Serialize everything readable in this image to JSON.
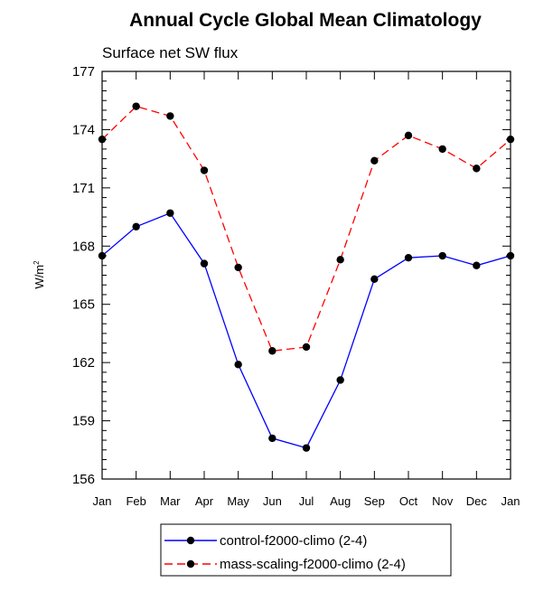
{
  "chart_data": {
    "type": "line",
    "title": "Annual Cycle Global Mean Climatology",
    "subtitle": "Surface net SW flux",
    "ylabel_base": "W/m",
    "ylabel_exp": "2",
    "xlabel": "",
    "categories": [
      "Jan",
      "Feb",
      "Mar",
      "Apr",
      "May",
      "Jun",
      "Jul",
      "Aug",
      "Sep",
      "Oct",
      "Nov",
      "Dec",
      "Jan"
    ],
    "ylim": [
      156,
      177
    ],
    "yticks": [
      156,
      159,
      162,
      165,
      168,
      171,
      174,
      177
    ],
    "grid": false,
    "legend_position": "bottom",
    "series": [
      {
        "name": "control-f2000-climo (2-4)",
        "color": "#0000ff",
        "dash": "solid",
        "marker": "filled-circle",
        "values": [
          167.5,
          169.0,
          169.7,
          167.1,
          161.9,
          158.1,
          157.6,
          161.1,
          166.3,
          167.4,
          167.5,
          167.0,
          167.5
        ]
      },
      {
        "name": "mass-scaling-f2000-climo (2-4)",
        "color": "#ff0000",
        "dash": "dashed",
        "marker": "filled-circle",
        "values": [
          173.5,
          175.2,
          174.7,
          171.9,
          166.9,
          162.6,
          162.8,
          167.3,
          172.4,
          173.7,
          173.0,
          172.0,
          173.5
        ]
      }
    ]
  }
}
